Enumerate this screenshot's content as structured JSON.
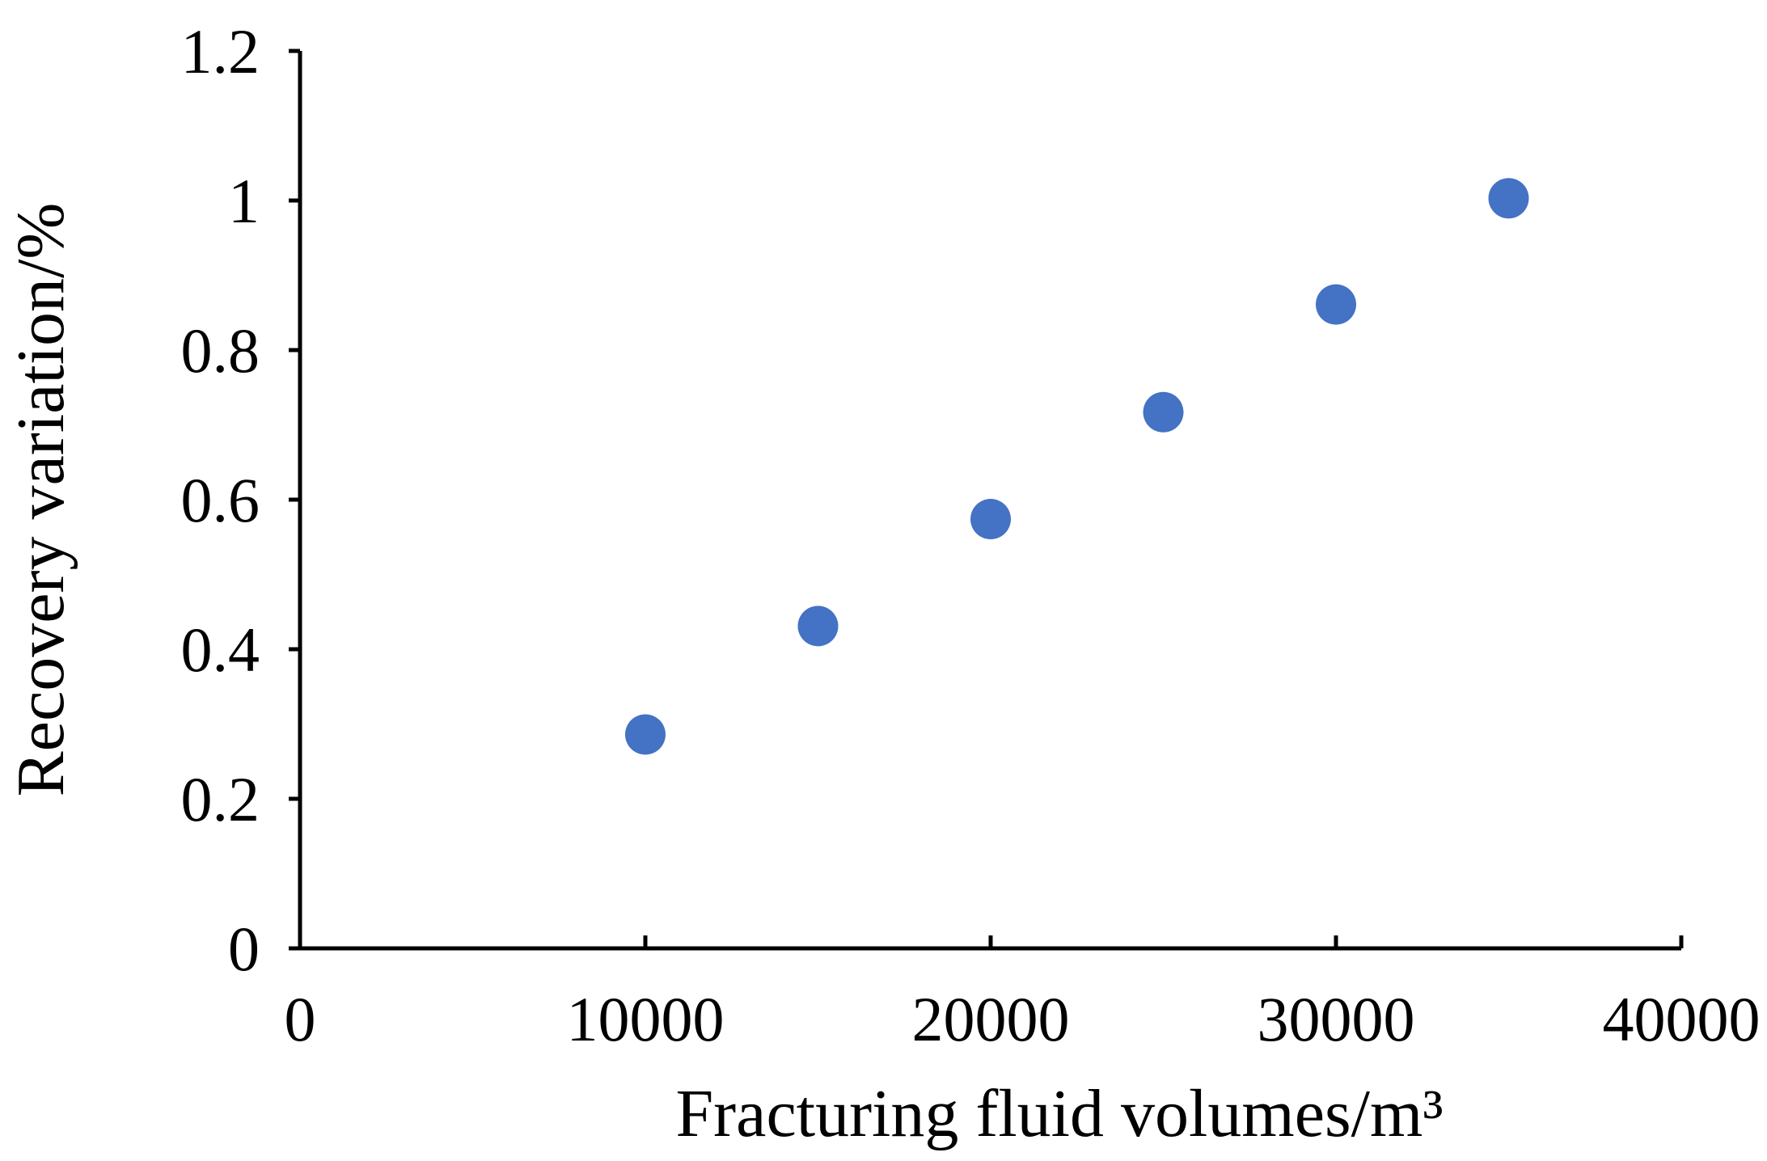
{
  "chart_data": {
    "type": "scatter",
    "x_label": "Fracturing fluid volumes/m³",
    "y_label": "Recovery variation/%",
    "series": [
      {
        "color": "#4472c4",
        "x": [
          10000,
          15000,
          20000,
          25000,
          30000,
          35000
        ],
        "values": [
          0.286,
          0.431,
          0.574,
          0.717,
          0.861,
          1.003
        ]
      }
    ],
    "xlim": [
      0,
      40000
    ],
    "xticks": [
      0,
      10000,
      20000,
      30000,
      40000
    ],
    "ylim": [
      0,
      1.2
    ],
    "yticks": [
      0,
      0.2,
      0.4,
      0.6,
      0.8,
      1,
      1.2
    ]
  }
}
